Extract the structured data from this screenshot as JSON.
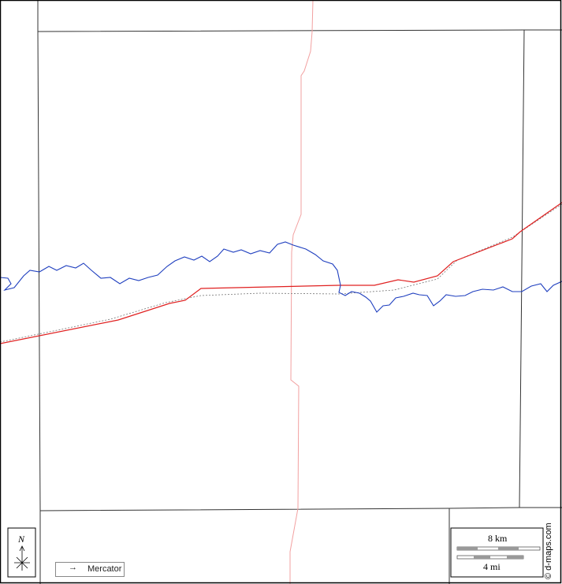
{
  "map": {
    "colors": {
      "border": "#000000",
      "county_line": "#333333",
      "river": "#1f3fbf",
      "highway": "#e02020",
      "railway": "#777777",
      "local_road": "#f2a0a0",
      "background": "#ffffff"
    },
    "features": [
      "county-boundaries",
      "river",
      "highway",
      "railway",
      "local-road"
    ]
  },
  "north_arrow": {
    "letter": "N"
  },
  "projection": {
    "from_icon": "circle-icon",
    "arrow": "→",
    "to_icon": "square-icon",
    "label": "Mercator"
  },
  "scale_bar": {
    "km_label": "8 km",
    "mi_label": "4 mi"
  },
  "credit": "© d-maps.com"
}
